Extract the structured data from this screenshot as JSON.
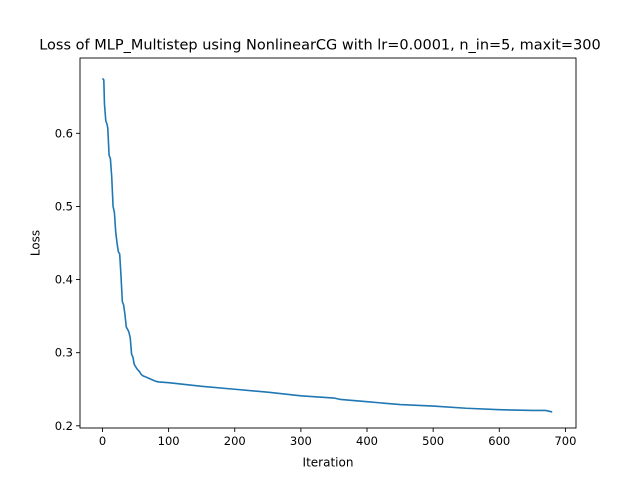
{
  "chart_data": {
    "type": "line",
    "title": "Loss of MLP_Multistep using NonlinearCG with lr=0.0001, n_in=5, maxit=300",
    "xlabel": "Iteration",
    "ylabel": "Loss",
    "xlim": [
      -34,
      716
    ],
    "ylim": [
      0.197,
      0.703
    ],
    "xticks": [
      0,
      100,
      200,
      300,
      400,
      500,
      600,
      700
    ],
    "xtick_labels": [
      "0",
      "100",
      "200",
      "300",
      "400",
      "500",
      "600",
      "700"
    ],
    "yticks": [
      0.2,
      0.3,
      0.4,
      0.5,
      0.6
    ],
    "ytick_labels": [
      "0.2",
      "0.3",
      "0.4",
      "0.5",
      "0.6"
    ],
    "grid": false,
    "legend": "none",
    "line_color": "#1f77b4",
    "series": [
      {
        "x": [
          0,
          2,
          3,
          5,
          7,
          8,
          10,
          12,
          14,
          16,
          18,
          20,
          22,
          24,
          26,
          28,
          30,
          32,
          34,
          36,
          38,
          40,
          42,
          44,
          46,
          48,
          50,
          52,
          54,
          56,
          58,
          60,
          62,
          65,
          70,
          75,
          80,
          85,
          100,
          150,
          200,
          250,
          300,
          350,
          360,
          400,
          450,
          500,
          550,
          600,
          650,
          670,
          680
        ],
        "y": [
          0.675,
          0.673,
          0.64,
          0.617,
          0.612,
          0.607,
          0.57,
          0.565,
          0.54,
          0.5,
          0.492,
          0.465,
          0.45,
          0.438,
          0.435,
          0.405,
          0.37,
          0.365,
          0.352,
          0.335,
          0.332,
          0.328,
          0.32,
          0.298,
          0.294,
          0.284,
          0.281,
          0.278,
          0.276,
          0.274,
          0.271,
          0.269,
          0.268,
          0.267,
          0.265,
          0.263,
          0.261,
          0.26,
          0.259,
          0.254,
          0.25,
          0.246,
          0.241,
          0.238,
          0.236,
          0.233,
          0.229,
          0.227,
          0.224,
          0.222,
          0.221,
          0.221,
          0.219
        ]
      }
    ]
  }
}
